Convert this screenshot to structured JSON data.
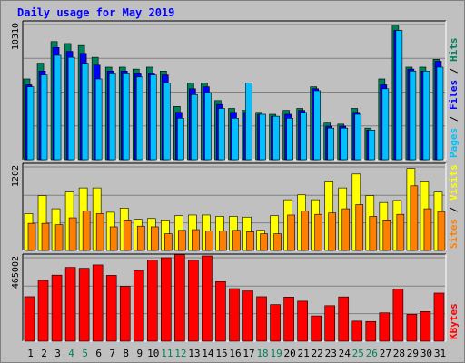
{
  "title": "Daily usage for May 2019",
  "colors": {
    "hits": "#00805c",
    "files": "#0000ff",
    "pages": "#00c0ff",
    "visits": "#ffff00",
    "sites": "#ff8000",
    "kbytes": "#ff0000",
    "weekend_label": "#00805c",
    "weekday_label": "#000000"
  },
  "chart_data": [
    {
      "type": "bar",
      "panel": "top",
      "axis_max_label": "10310",
      "ylim": [
        0,
        10310
      ],
      "right_label": {
        "pages": "Pages",
        "files": "Files",
        "hits": "Hits",
        "sep": " / "
      },
      "categories": [
        "1",
        "2",
        "3",
        "4",
        "5",
        "6",
        "7",
        "8",
        "9",
        "10",
        "11",
        "12",
        "13",
        "14",
        "15",
        "16",
        "17",
        "18",
        "19",
        "20",
        "21",
        "22",
        "23",
        "24",
        "25",
        "26",
        "27",
        "28",
        "29",
        "30",
        "31"
      ],
      "series": [
        {
          "name": "Hits",
          "values": [
            6160,
            7360,
            9010,
            8860,
            8710,
            7810,
            7060,
            7060,
            6910,
            7060,
            6760,
            4060,
            5860,
            5860,
            4510,
            3910,
            3760,
            3610,
            3460,
            3760,
            3910,
            5560,
            2860,
            2710,
            3910,
            2410,
            6160,
            10260,
            7060,
            7060,
            7660
          ]
        },
        {
          "name": "Files",
          "values": [
            5710,
            6760,
            8560,
            8260,
            8110,
            7210,
            6760,
            6760,
            6610,
            6610,
            6460,
            3610,
            5410,
            5560,
            4210,
            3610,
            3610,
            3460,
            3310,
            3460,
            3760,
            5410,
            2560,
            2560,
            3610,
            2260,
            5710,
            9860,
            6910,
            6760,
            7510
          ]
        },
        {
          "name": "Pages",
          "values": [
            5560,
            6460,
            7960,
            7810,
            7360,
            6160,
            6610,
            6610,
            6310,
            6460,
            5860,
            3160,
            4960,
            5110,
            3910,
            3160,
            5860,
            3460,
            3310,
            3160,
            3610,
            5260,
            2410,
            2410,
            3460,
            2260,
            5410,
            9860,
            6760,
            6760,
            7060
          ]
        }
      ]
    },
    {
      "type": "bar",
      "panel": "middle",
      "axis_max_label": "1202",
      "ylim": [
        0,
        1202
      ],
      "right_label": {
        "sites": "Sites",
        "visits": "Visits",
        "sep": " / "
      },
      "categories": [
        "1",
        "2",
        "3",
        "4",
        "5",
        "6",
        "7",
        "8",
        "9",
        "10",
        "11",
        "12",
        "13",
        "14",
        "15",
        "16",
        "17",
        "18",
        "19",
        "20",
        "21",
        "22",
        "23",
        "24",
        "25",
        "26",
        "27",
        "28",
        "29",
        "30",
        "31"
      ],
      "series": [
        {
          "name": "Visits",
          "values": [
            530,
            790,
            600,
            840,
            900,
            900,
            550,
            610,
            450,
            460,
            440,
            500,
            510,
            510,
            490,
            490,
            480,
            290,
            500,
            730,
            800,
            730,
            1000,
            900,
            1100,
            790,
            690,
            720,
            1180,
            1000,
            840
          ]
        },
        {
          "name": "Sites",
          "values": [
            390,
            390,
            370,
            470,
            570,
            530,
            340,
            440,
            350,
            340,
            240,
            290,
            300,
            280,
            280,
            290,
            270,
            240,
            240,
            510,
            570,
            520,
            540,
            600,
            660,
            490,
            440,
            520,
            930,
            600,
            560
          ]
        }
      ]
    },
    {
      "type": "bar",
      "panel": "bottom",
      "axis_max_label": "465002",
      "ylim": [
        0,
        465002
      ],
      "right_label": {
        "kbytes": "KBytes"
      },
      "categories": [
        "1",
        "2",
        "3",
        "4",
        "5",
        "6",
        "7",
        "8",
        "9",
        "10",
        "11",
        "12",
        "13",
        "14",
        "15",
        "16",
        "17",
        "18",
        "19",
        "20",
        "21",
        "22",
        "23",
        "24",
        "25",
        "26",
        "27",
        "28",
        "29",
        "30",
        "31"
      ],
      "series": [
        {
          "name": "KBytes",
          "values": [
            248000,
            339000,
            368000,
            411000,
            406000,
            425000,
            367000,
            306000,
            394000,
            452000,
            465000,
            482000,
            451000,
            475000,
            332000,
            293000,
            280000,
            248000,
            204000,
            246000,
            223000,
            141000,
            198000,
            247000,
            112000,
            110000,
            158000,
            291000,
            150000,
            165000,
            268000
          ]
        }
      ]
    }
  ],
  "x_axis": {
    "labels": [
      "1",
      "2",
      "3",
      "4",
      "5",
      "6",
      "7",
      "8",
      "9",
      "10",
      "11",
      "12",
      "13",
      "14",
      "15",
      "16",
      "17",
      "18",
      "19",
      "20",
      "21",
      "22",
      "23",
      "24",
      "25",
      "26",
      "27",
      "28",
      "29",
      "30",
      "31"
    ],
    "weekend_days": [
      "4",
      "5",
      "11",
      "12",
      "18",
      "19",
      "25",
      "26"
    ]
  }
}
